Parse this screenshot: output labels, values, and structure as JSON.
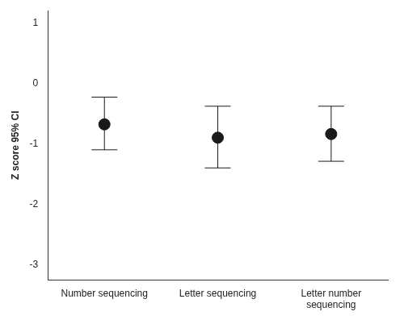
{
  "chart_data": {
    "type": "scatter",
    "y_label": "Z score 95% CI",
    "categories": [
      "Number sequencing",
      "Letter sequencing",
      "Letter number sequencing"
    ],
    "values": [
      -0.68,
      -0.9,
      -0.84
    ],
    "ci_lower": [
      -1.1,
      -1.4,
      -1.29
    ],
    "ci_upper": [
      -0.23,
      -0.38,
      -0.38
    ],
    "color": "#1a1a1a",
    "ylim": [
      -3.25,
      1.2
    ],
    "yticks": [
      -3,
      -2,
      -1,
      0,
      1
    ],
    "grid": false
  }
}
